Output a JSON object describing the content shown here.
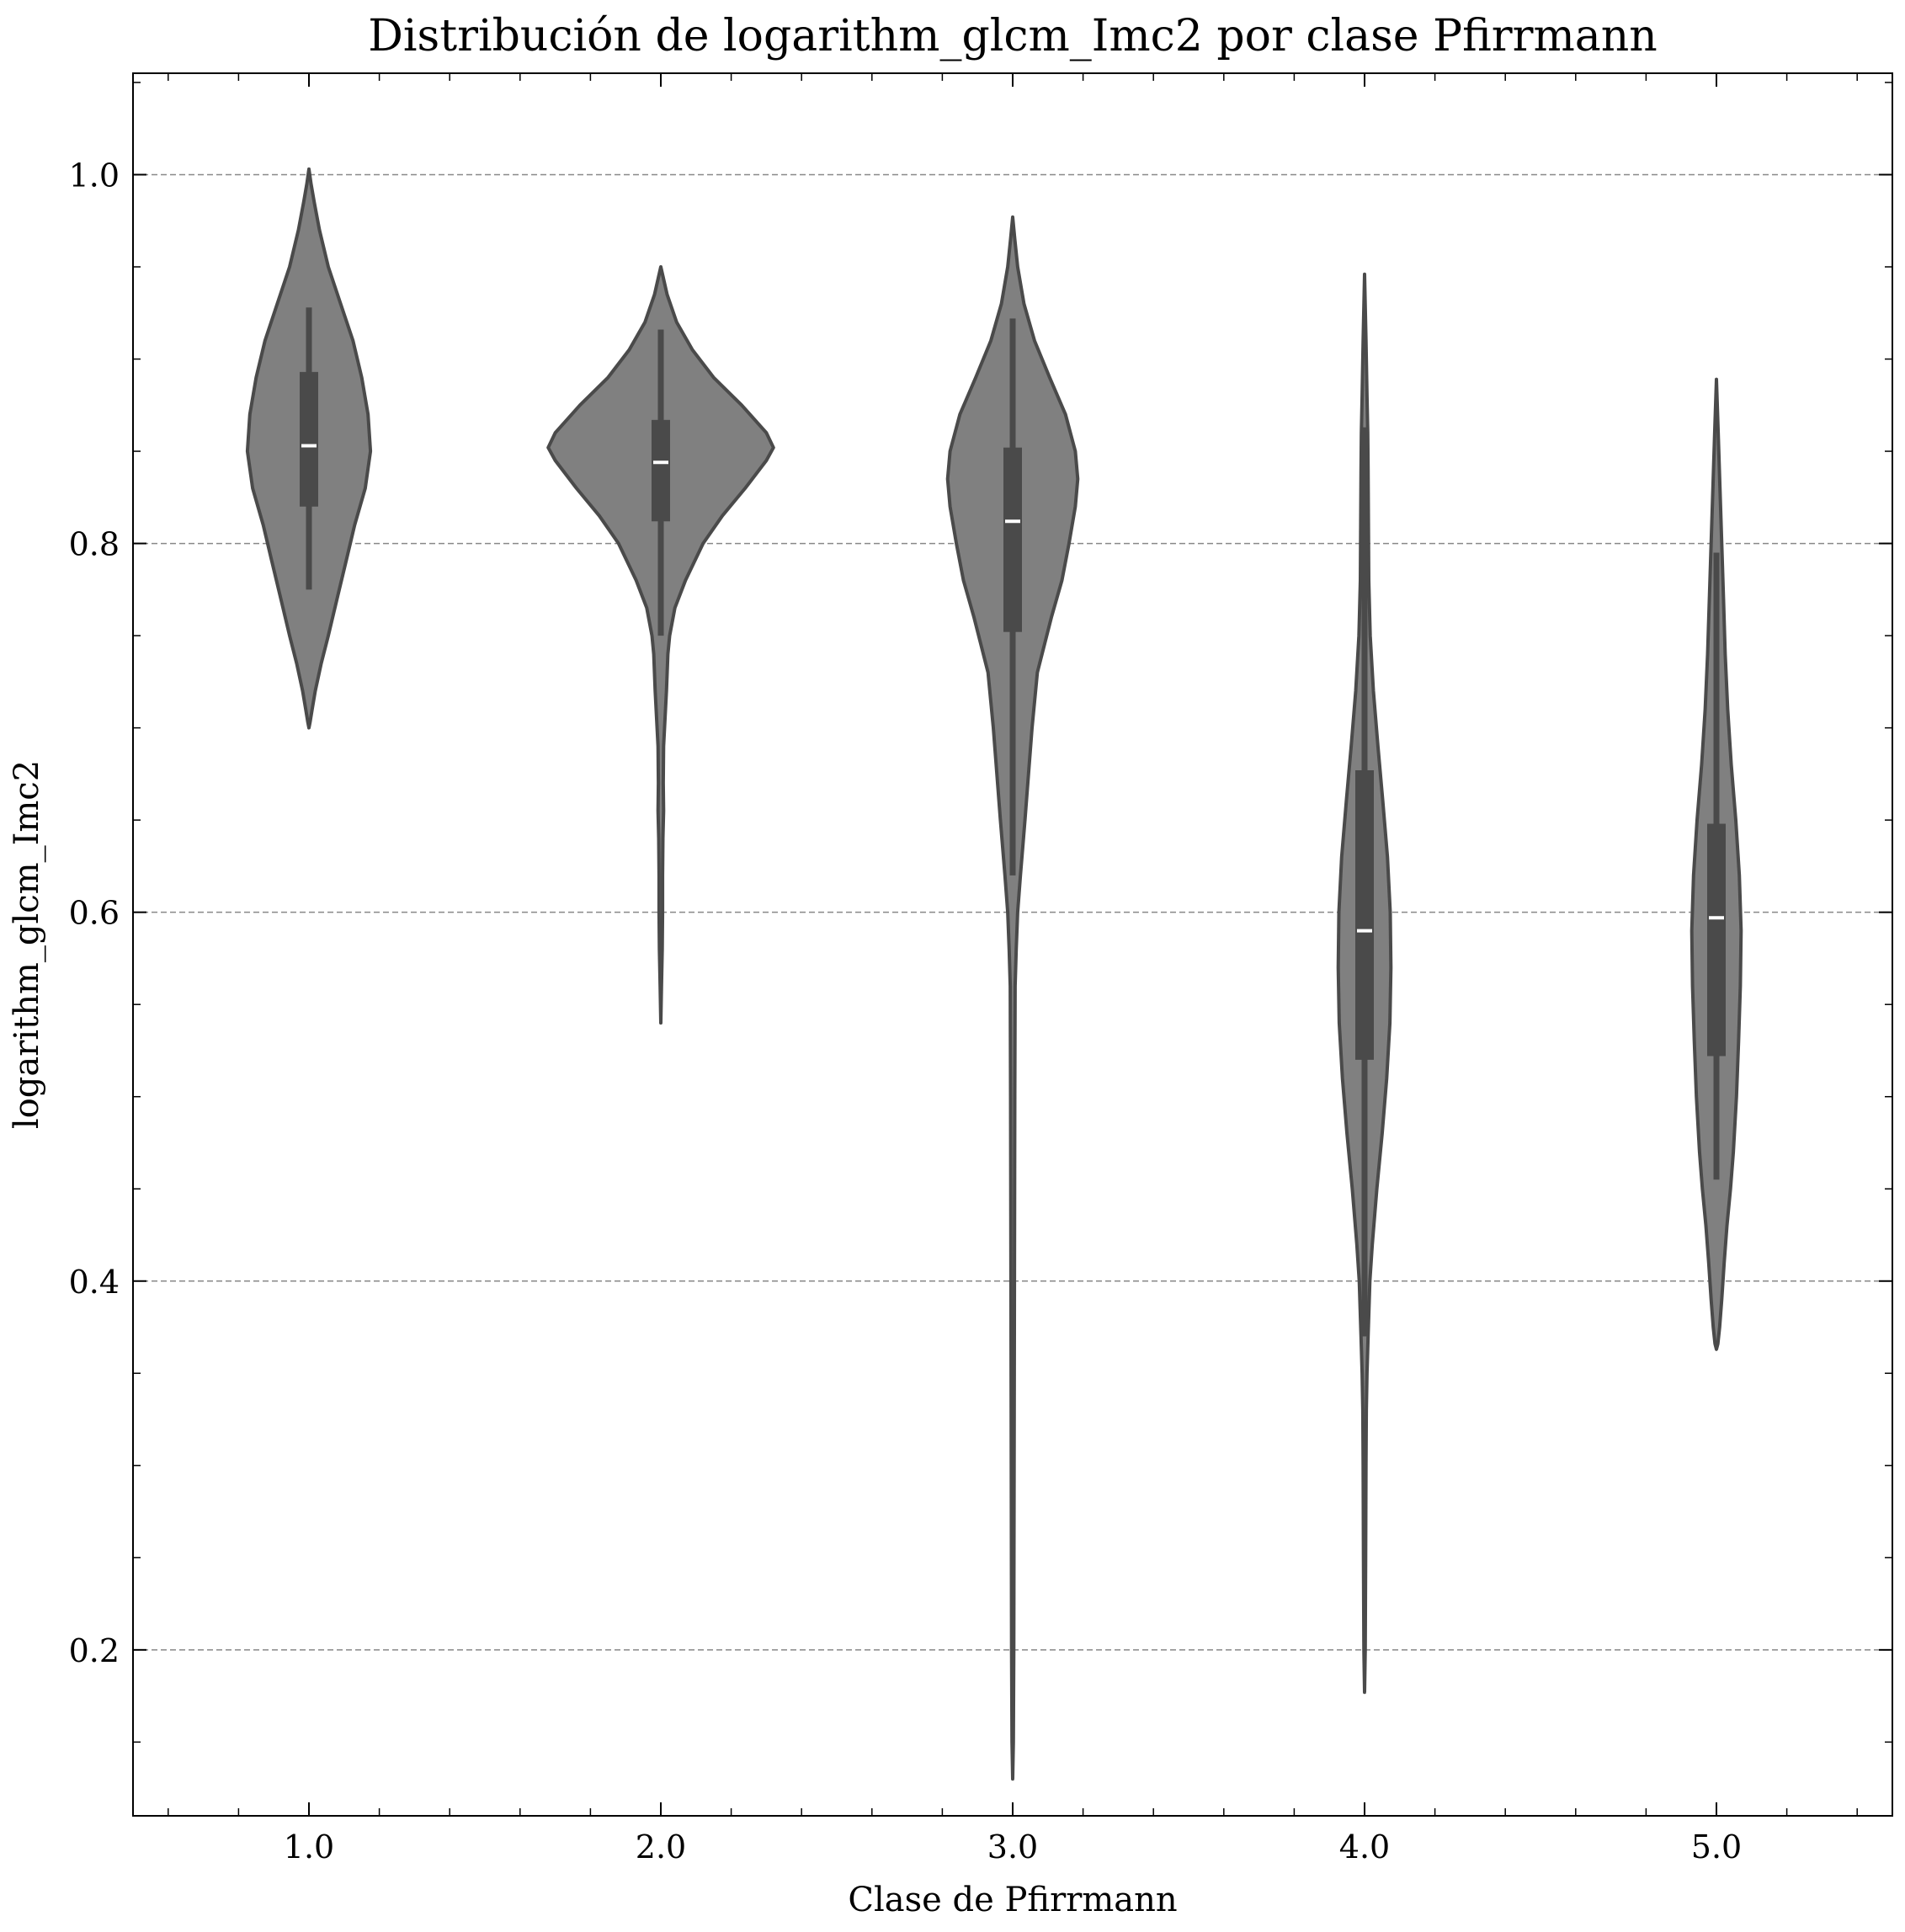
{
  "chart_data": {
    "type": "violin",
    "title": "Distribución de logarithm_glcm_Imc2 por clase Pfirrmann",
    "xlabel": "Clase de Pfirrmann",
    "ylabel": "logarithm_glcm_Imc2",
    "xlim": [
      0.5,
      5.5
    ],
    "ylim": [
      0.11,
      1.055
    ],
    "yticks": [
      0.2,
      0.4,
      0.6,
      0.8,
      1.0
    ],
    "ytick_labels": [
      "0.2",
      "0.4",
      "0.6",
      "0.8",
      "1.0"
    ],
    "xticks": [
      1,
      2,
      3,
      4,
      5
    ],
    "xtick_labels": [
      "1.0",
      "2.0",
      "3.0",
      "4.0",
      "5.0"
    ],
    "grid": "horizontal dashed",
    "colors": {
      "body": "#808080",
      "edge": "#4a4a4a",
      "median": "#ffffff",
      "grid": "#888888"
    },
    "violins": [
      {
        "label": "1.0",
        "min": 0.775,
        "q1": 0.82,
        "median": 0.853,
        "q3": 0.893,
        "max": 0.928,
        "profile": [
          [
            0.7,
            0.0
          ],
          [
            0.703,
            0.003
          ],
          [
            0.71,
            0.009
          ],
          [
            0.72,
            0.018
          ],
          [
            0.735,
            0.035
          ],
          [
            0.75,
            0.055
          ],
          [
            0.77,
            0.08
          ],
          [
            0.79,
            0.105
          ],
          [
            0.81,
            0.13
          ],
          [
            0.83,
            0.16
          ],
          [
            0.85,
            0.175
          ],
          [
            0.87,
            0.168
          ],
          [
            0.89,
            0.15
          ],
          [
            0.91,
            0.125
          ],
          [
            0.93,
            0.09
          ],
          [
            0.95,
            0.055
          ],
          [
            0.97,
            0.03
          ],
          [
            0.985,
            0.015
          ],
          [
            0.995,
            0.006
          ],
          [
            1.003,
            0.0
          ]
        ]
      },
      {
        "label": "2.0",
        "min": 0.75,
        "q1": 0.812,
        "median": 0.844,
        "q3": 0.867,
        "max": 0.916,
        "profile": [
          [
            0.54,
            0.0
          ],
          [
            0.56,
            0.002
          ],
          [
            0.58,
            0.004
          ],
          [
            0.6,
            0.005
          ],
          [
            0.62,
            0.005
          ],
          [
            0.64,
            0.006
          ],
          [
            0.655,
            0.008
          ],
          [
            0.67,
            0.007
          ],
          [
            0.69,
            0.008
          ],
          [
            0.705,
            0.012
          ],
          [
            0.72,
            0.016
          ],
          [
            0.74,
            0.02
          ],
          [
            0.75,
            0.025
          ],
          [
            0.765,
            0.04
          ],
          [
            0.78,
            0.07
          ],
          [
            0.8,
            0.12
          ],
          [
            0.815,
            0.175
          ],
          [
            0.83,
            0.24
          ],
          [
            0.845,
            0.3
          ],
          [
            0.852,
            0.32
          ],
          [
            0.86,
            0.3
          ],
          [
            0.875,
            0.23
          ],
          [
            0.89,
            0.15
          ],
          [
            0.905,
            0.09
          ],
          [
            0.92,
            0.045
          ],
          [
            0.935,
            0.018
          ],
          [
            0.945,
            0.006
          ],
          [
            0.95,
            0.0
          ]
        ]
      },
      {
        "label": "3.0",
        "min": 0.62,
        "q1": 0.752,
        "median": 0.812,
        "q3": 0.852,
        "max": 0.922,
        "profile": [
          [
            0.13,
            0.0
          ],
          [
            0.15,
            0.002
          ],
          [
            0.2,
            0.003
          ],
          [
            0.3,
            0.004
          ],
          [
            0.4,
            0.005
          ],
          [
            0.5,
            0.006
          ],
          [
            0.56,
            0.007
          ],
          [
            0.58,
            0.01
          ],
          [
            0.6,
            0.014
          ],
          [
            0.62,
            0.022
          ],
          [
            0.65,
            0.035
          ],
          [
            0.7,
            0.055
          ],
          [
            0.73,
            0.07
          ],
          [
            0.76,
            0.11
          ],
          [
            0.78,
            0.14
          ],
          [
            0.8,
            0.16
          ],
          [
            0.82,
            0.178
          ],
          [
            0.835,
            0.185
          ],
          [
            0.85,
            0.178
          ],
          [
            0.87,
            0.15
          ],
          [
            0.89,
            0.105
          ],
          [
            0.91,
            0.062
          ],
          [
            0.93,
            0.032
          ],
          [
            0.95,
            0.014
          ],
          [
            0.965,
            0.006
          ],
          [
            0.977,
            0.0
          ]
        ]
      },
      {
        "label": "4.0",
        "min": 0.37,
        "q1": 0.52,
        "median": 0.59,
        "q3": 0.677,
        "max": 0.863,
        "profile": [
          [
            0.177,
            0.0
          ],
          [
            0.2,
            0.002
          ],
          [
            0.25,
            0.003
          ],
          [
            0.3,
            0.004
          ],
          [
            0.33,
            0.005
          ],
          [
            0.35,
            0.007
          ],
          [
            0.37,
            0.01
          ],
          [
            0.4,
            0.015
          ],
          [
            0.42,
            0.022
          ],
          [
            0.45,
            0.035
          ],
          [
            0.48,
            0.05
          ],
          [
            0.51,
            0.063
          ],
          [
            0.54,
            0.072
          ],
          [
            0.57,
            0.075
          ],
          [
            0.6,
            0.073
          ],
          [
            0.63,
            0.065
          ],
          [
            0.66,
            0.052
          ],
          [
            0.69,
            0.038
          ],
          [
            0.72,
            0.025
          ],
          [
            0.75,
            0.016
          ],
          [
            0.78,
            0.012
          ],
          [
            0.81,
            0.011
          ],
          [
            0.84,
            0.01
          ],
          [
            0.86,
            0.009
          ],
          [
            0.88,
            0.007
          ],
          [
            0.91,
            0.004
          ],
          [
            0.946,
            0.0
          ]
        ]
      },
      {
        "label": "5.0",
        "min": 0.455,
        "q1": 0.522,
        "median": 0.597,
        "q3": 0.648,
        "max": 0.795,
        "profile": [
          [
            0.363,
            0.0
          ],
          [
            0.366,
            0.004
          ],
          [
            0.375,
            0.009
          ],
          [
            0.39,
            0.015
          ],
          [
            0.41,
            0.022
          ],
          [
            0.43,
            0.03
          ],
          [
            0.45,
            0.04
          ],
          [
            0.47,
            0.048
          ],
          [
            0.5,
            0.057
          ],
          [
            0.53,
            0.063
          ],
          [
            0.56,
            0.068
          ],
          [
            0.59,
            0.07
          ],
          [
            0.62,
            0.065
          ],
          [
            0.65,
            0.055
          ],
          [
            0.68,
            0.042
          ],
          [
            0.71,
            0.032
          ],
          [
            0.74,
            0.025
          ],
          [
            0.77,
            0.02
          ],
          [
            0.8,
            0.015
          ],
          [
            0.83,
            0.01
          ],
          [
            0.86,
            0.005
          ],
          [
            0.889,
            0.0
          ]
        ]
      }
    ]
  }
}
